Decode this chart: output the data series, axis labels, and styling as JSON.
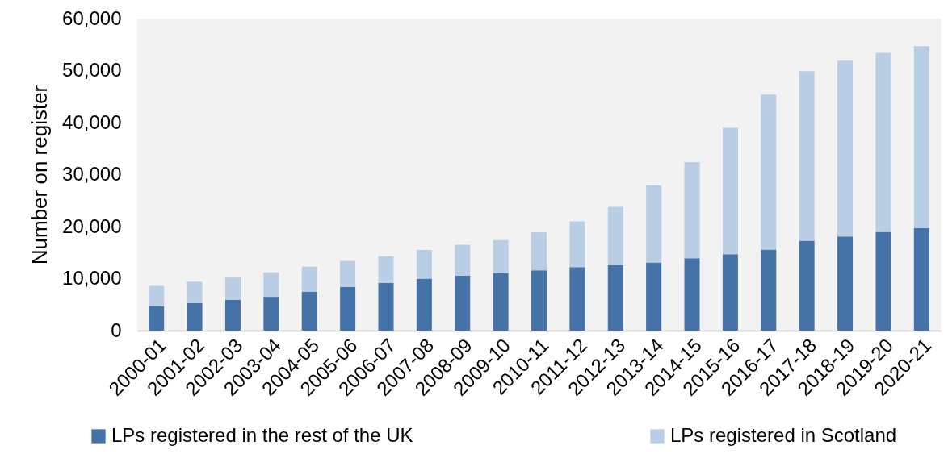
{
  "chart_data": {
    "type": "bar",
    "stacked": true,
    "ylabel": "Number on register",
    "categories": [
      "2000-01",
      "2001-02",
      "2002-03",
      "2003-04",
      "2004-05",
      "2005-06",
      "2006-07",
      "2007-08",
      "2008-09",
      "2009-10",
      "2010-11",
      "2011-12",
      "2012-13",
      "2013-14",
      "2014-15",
      "2015-16",
      "2016-17",
      "2017-18",
      "2018-19",
      "2019-20",
      "2020-21"
    ],
    "series": [
      {
        "name": "LPs registered in the rest of the UK",
        "color": "#4573a7",
        "values": [
          4700,
          5300,
          5900,
          6500,
          7500,
          8400,
          9200,
          10000,
          10600,
          11100,
          11600,
          12200,
          12600,
          13100,
          13900,
          14700,
          15600,
          17300,
          18100,
          19000,
          19700
        ]
      },
      {
        "name": "LPs registered in Scotland",
        "color": "#b9cde4",
        "values": [
          3900,
          4100,
          4300,
          4700,
          4800,
          5000,
          5100,
          5500,
          5900,
          6300,
          7300,
          8800,
          11200,
          14800,
          18500,
          24300,
          29800,
          32600,
          33800,
          34400,
          35000
        ]
      }
    ],
    "ylim": [
      0,
      60000
    ],
    "yticks": [
      0,
      {
        "value": 10000,
        "label": "10,000"
      },
      {
        "value": 20000,
        "label": "20,000"
      },
      {
        "value": 30000,
        "label": "30,000"
      },
      {
        "value": 40000,
        "label": "40,000"
      },
      {
        "value": 50000,
        "label": "50,000"
      },
      {
        "value": 60000,
        "label": "60,000"
      }
    ],
    "grid": false,
    "legend": "bottom"
  }
}
